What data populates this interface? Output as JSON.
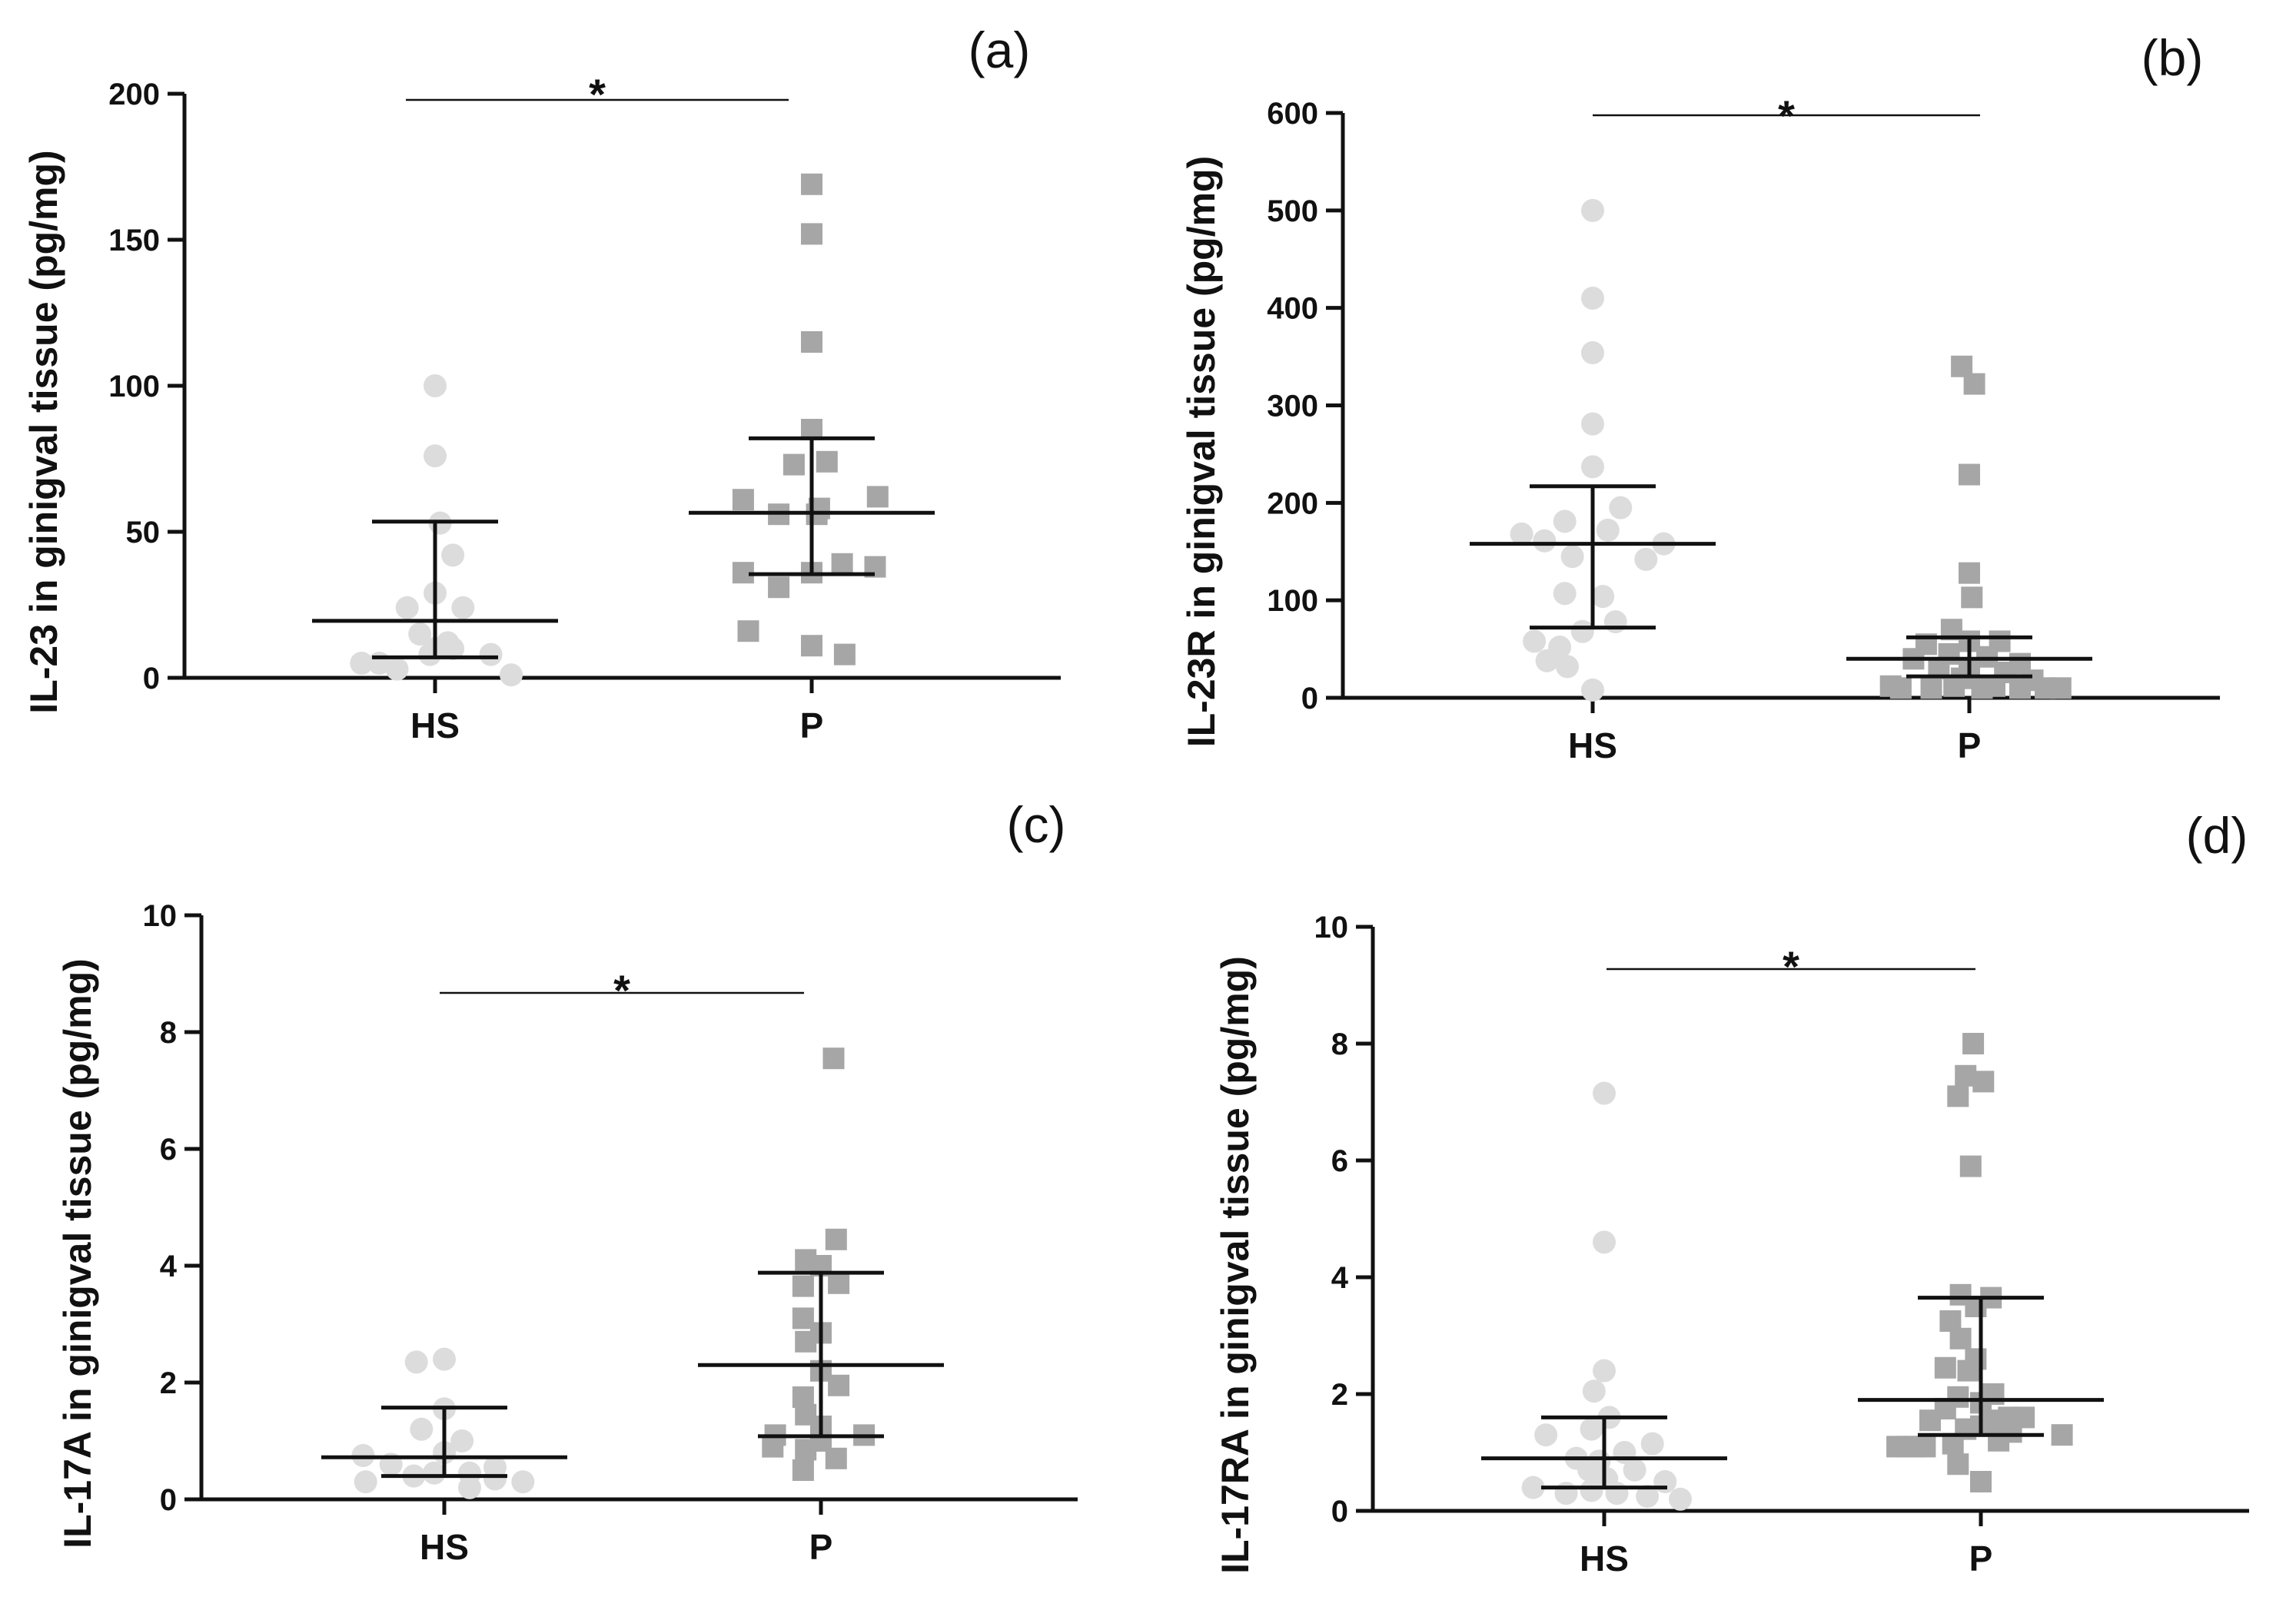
{
  "colors": {
    "hs_marker": "#dcdcdc",
    "p_marker": "#a6a6a6",
    "axis": "#111111"
  },
  "chart_data": [
    {
      "type": "scatter",
      "panel_label": "(a)",
      "ylabel": "IL-23 in ginigval tissue (pg/mg)",
      "xlabel": "",
      "categories": [
        "HS",
        "P"
      ],
      "ylim": [
        0,
        200
      ],
      "yticks": [
        0,
        50,
        100,
        150,
        200
      ],
      "significance": "*",
      "series": [
        {
          "name": "HS",
          "marker": "circle",
          "points": [
            {
              "dx": 0.0,
              "y": 100
            },
            {
              "dx": 0.0,
              "y": 76
            },
            {
              "dx": 0.02,
              "y": 53
            },
            {
              "dx": 0.07,
              "y": 42
            },
            {
              "dx": -0.11,
              "y": 24
            },
            {
              "dx": 0.11,
              "y": 24
            },
            {
              "dx": 0.0,
              "y": 29
            },
            {
              "dx": -0.06,
              "y": 15
            },
            {
              "dx": 0.05,
              "y": 12
            },
            {
              "dx": 0.0,
              "y": 10
            },
            {
              "dx": -0.02,
              "y": 8
            },
            {
              "dx": 0.07,
              "y": 10
            },
            {
              "dx": 0.22,
              "y": 8
            },
            {
              "dx": -0.29,
              "y": 5
            },
            {
              "dx": -0.22,
              "y": 5
            },
            {
              "dx": -0.15,
              "y": 3
            },
            {
              "dx": 0.3,
              "y": 1
            }
          ],
          "mean": 19.5,
          "err_low": 7,
          "err_high": 53.5
        },
        {
          "name": "P",
          "marker": "square",
          "points": [
            {
              "dx": 0.0,
              "y": 169
            },
            {
              "dx": 0.0,
              "y": 152
            },
            {
              "dx": 0.0,
              "y": 115
            },
            {
              "dx": 0.0,
              "y": 85
            },
            {
              "dx": -0.07,
              "y": 73
            },
            {
              "dx": 0.06,
              "y": 74
            },
            {
              "dx": -0.27,
              "y": 61
            },
            {
              "dx": 0.26,
              "y": 62
            },
            {
              "dx": -0.13,
              "y": 56
            },
            {
              "dx": 0.02,
              "y": 56
            },
            {
              "dx": 0.03,
              "y": 58
            },
            {
              "dx": -0.27,
              "y": 36
            },
            {
              "dx": -0.13,
              "y": 31
            },
            {
              "dx": 0.0,
              "y": 36
            },
            {
              "dx": 0.12,
              "y": 39
            },
            {
              "dx": 0.25,
              "y": 38
            },
            {
              "dx": -0.25,
              "y": 16
            },
            {
              "dx": 0.0,
              "y": 11
            },
            {
              "dx": 0.13,
              "y": 8
            }
          ],
          "mean": 56.5,
          "err_low": 35.5,
          "err_high": 82
        }
      ]
    },
    {
      "type": "scatter",
      "panel_label": "(b)",
      "ylabel": "IL-23R in ginigval tissue (pg/mg)",
      "xlabel": "",
      "categories": [
        "HS",
        "P"
      ],
      "ylim": [
        0,
        600
      ],
      "yticks": [
        0,
        100,
        200,
        300,
        400,
        500,
        600
      ],
      "significance": "*",
      "series": [
        {
          "name": "HS",
          "marker": "circle",
          "points": [
            {
              "dx": 0.0,
              "y": 500
            },
            {
              "dx": 0.0,
              "y": 410
            },
            {
              "dx": 0.0,
              "y": 354
            },
            {
              "dx": 0.0,
              "y": 281
            },
            {
              "dx": 0.0,
              "y": 237
            },
            {
              "dx": 0.11,
              "y": 195
            },
            {
              "dx": -0.11,
              "y": 181
            },
            {
              "dx": 0.06,
              "y": 172
            },
            {
              "dx": -0.28,
              "y": 168
            },
            {
              "dx": -0.19,
              "y": 161
            },
            {
              "dx": 0.28,
              "y": 158
            },
            {
              "dx": -0.08,
              "y": 145
            },
            {
              "dx": 0.21,
              "y": 142
            },
            {
              "dx": -0.11,
              "y": 107
            },
            {
              "dx": 0.04,
              "y": 104
            },
            {
              "dx": 0.09,
              "y": 78
            },
            {
              "dx": -0.04,
              "y": 68
            },
            {
              "dx": -0.23,
              "y": 58
            },
            {
              "dx": -0.13,
              "y": 52
            },
            {
              "dx": -0.18,
              "y": 38
            },
            {
              "dx": -0.1,
              "y": 32
            },
            {
              "dx": 0.0,
              "y": 8
            }
          ],
          "mean": 158,
          "err_low": 72,
          "err_high": 217
        },
        {
          "name": "P",
          "marker": "square",
          "points": [
            {
              "dx": -0.03,
              "y": 340
            },
            {
              "dx": 0.02,
              "y": 322
            },
            {
              "dx": 0.0,
              "y": 229
            },
            {
              "dx": 0.0,
              "y": 128
            },
            {
              "dx": 0.01,
              "y": 103
            },
            {
              "dx": -0.07,
              "y": 70
            },
            {
              "dx": 0.0,
              "y": 58
            },
            {
              "dx": 0.12,
              "y": 58
            },
            {
              "dx": -0.17,
              "y": 55
            },
            {
              "dx": -0.08,
              "y": 45
            },
            {
              "dx": 0.07,
              "y": 42
            },
            {
              "dx": -0.22,
              "y": 40
            },
            {
              "dx": 0.2,
              "y": 35
            },
            {
              "dx": -0.12,
              "y": 30
            },
            {
              "dx": 0.0,
              "y": 28
            },
            {
              "dx": 0.14,
              "y": 26
            },
            {
              "dx": -0.03,
              "y": 20
            },
            {
              "dx": 0.25,
              "y": 18
            },
            {
              "dx": -0.31,
              "y": 12
            },
            {
              "dx": -0.27,
              "y": 10
            },
            {
              "dx": -0.15,
              "y": 10
            },
            {
              "dx": 0.05,
              "y": 10
            },
            {
              "dx": 0.2,
              "y": 10
            },
            {
              "dx": 0.3,
              "y": 10
            },
            {
              "dx": 0.36,
              "y": 10
            },
            {
              "dx": -0.06,
              "y": 12
            },
            {
              "dx": 0.1,
              "y": 12
            }
          ],
          "mean": 40,
          "err_low": 22,
          "err_high": 62
        }
      ]
    },
    {
      "type": "scatter",
      "panel_label": "(c)",
      "ylabel": "IL-17A in ginigval tissue (pg/mg)",
      "xlabel": "",
      "categories": [
        "HS",
        "P"
      ],
      "ylim": [
        0,
        10
      ],
      "yticks": [
        0,
        2,
        4,
        6,
        8,
        10
      ],
      "significance": "*",
      "series": [
        {
          "name": "HS",
          "marker": "circle",
          "points": [
            {
              "dx": -0.11,
              "y": 2.35
            },
            {
              "dx": 0.0,
              "y": 2.4
            },
            {
              "dx": 0.0,
              "y": 1.55
            },
            {
              "dx": -0.09,
              "y": 1.2
            },
            {
              "dx": 0.07,
              "y": 1.0
            },
            {
              "dx": -0.32,
              "y": 0.75
            },
            {
              "dx": 0.0,
              "y": 0.8
            },
            {
              "dx": -0.21,
              "y": 0.6
            },
            {
              "dx": 0.2,
              "y": 0.55
            },
            {
              "dx": -0.12,
              "y": 0.4
            },
            {
              "dx": -0.04,
              "y": 0.45
            },
            {
              "dx": 0.1,
              "y": 0.45
            },
            {
              "dx": 0.2,
              "y": 0.35
            },
            {
              "dx": -0.31,
              "y": 0.3
            },
            {
              "dx": 0.31,
              "y": 0.3
            },
            {
              "dx": 0.1,
              "y": 0.2
            }
          ],
          "mean": 0.72,
          "err_low": 0.4,
          "err_high": 1.57
        },
        {
          "name": "P",
          "marker": "square",
          "points": [
            {
              "dx": 0.05,
              "y": 7.55
            },
            {
              "dx": 0.06,
              "y": 4.45
            },
            {
              "dx": -0.06,
              "y": 4.1
            },
            {
              "dx": 0.0,
              "y": 4.0
            },
            {
              "dx": -0.07,
              "y": 3.65
            },
            {
              "dx": 0.07,
              "y": 3.7
            },
            {
              "dx": -0.07,
              "y": 3.1
            },
            {
              "dx": 0.0,
              "y": 2.85
            },
            {
              "dx": -0.06,
              "y": 2.7
            },
            {
              "dx": 0.0,
              "y": 2.2
            },
            {
              "dx": 0.07,
              "y": 1.95
            },
            {
              "dx": -0.07,
              "y": 1.75
            },
            {
              "dx": -0.06,
              "y": 1.45
            },
            {
              "dx": 0.0,
              "y": 1.25
            },
            {
              "dx": -0.18,
              "y": 1.1
            },
            {
              "dx": 0.17,
              "y": 1.1
            },
            {
              "dx": 0.0,
              "y": 1.0
            },
            {
              "dx": -0.19,
              "y": 0.9
            },
            {
              "dx": -0.06,
              "y": 0.85
            },
            {
              "dx": 0.06,
              "y": 0.7
            },
            {
              "dx": -0.07,
              "y": 0.5
            }
          ],
          "mean": 2.3,
          "err_low": 1.08,
          "err_high": 3.88
        }
      ]
    },
    {
      "type": "scatter",
      "panel_label": "(d)",
      "ylabel": "IL-17RA in ginigval tissue (pg/mg)",
      "xlabel": "",
      "categories": [
        "HS",
        "P"
      ],
      "ylim": [
        0,
        10
      ],
      "yticks": [
        0,
        2,
        4,
        6,
        8,
        10
      ],
      "significance": "*",
      "series": [
        {
          "name": "HS",
          "marker": "circle",
          "points": [
            {
              "dx": 0.0,
              "y": 7.15
            },
            {
              "dx": 0.0,
              "y": 4.6
            },
            {
              "dx": 0.0,
              "y": 2.4
            },
            {
              "dx": -0.04,
              "y": 2.05
            },
            {
              "dx": 0.02,
              "y": 1.6
            },
            {
              "dx": -0.05,
              "y": 1.4
            },
            {
              "dx": -0.23,
              "y": 1.3
            },
            {
              "dx": 0.19,
              "y": 1.15
            },
            {
              "dx": 0.08,
              "y": 1.0
            },
            {
              "dx": -0.11,
              "y": 0.9
            },
            {
              "dx": -0.02,
              "y": 0.85
            },
            {
              "dx": 0.12,
              "y": 0.7
            },
            {
              "dx": -0.06,
              "y": 0.7
            },
            {
              "dx": 0.01,
              "y": 0.55
            },
            {
              "dx": 0.24,
              "y": 0.5
            },
            {
              "dx": -0.28,
              "y": 0.4
            },
            {
              "dx": -0.15,
              "y": 0.3
            },
            {
              "dx": -0.05,
              "y": 0.35
            },
            {
              "dx": 0.05,
              "y": 0.3
            },
            {
              "dx": 0.17,
              "y": 0.25
            },
            {
              "dx": 0.3,
              "y": 0.2
            }
          ],
          "mean": 0.9,
          "err_low": 0.4,
          "err_high": 1.6
        },
        {
          "name": "P",
          "marker": "square",
          "points": [
            {
              "dx": -0.03,
              "y": 8.0
            },
            {
              "dx": -0.06,
              "y": 7.45
            },
            {
              "dx": 0.01,
              "y": 7.35
            },
            {
              "dx": -0.09,
              "y": 7.1
            },
            {
              "dx": -0.04,
              "y": 5.9
            },
            {
              "dx": -0.08,
              "y": 3.7
            },
            {
              "dx": 0.04,
              "y": 3.65
            },
            {
              "dx": -0.02,
              "y": 3.5
            },
            {
              "dx": -0.12,
              "y": 3.25
            },
            {
              "dx": -0.08,
              "y": 2.95
            },
            {
              "dx": -0.02,
              "y": 2.6
            },
            {
              "dx": -0.14,
              "y": 2.45
            },
            {
              "dx": -0.05,
              "y": 2.4
            },
            {
              "dx": 0.05,
              "y": 2.0
            },
            {
              "dx": -0.09,
              "y": 1.95
            },
            {
              "dx": 0.0,
              "y": 1.85
            },
            {
              "dx": -0.14,
              "y": 1.75
            },
            {
              "dx": -0.2,
              "y": 1.55
            },
            {
              "dx": 0.11,
              "y": 1.6
            },
            {
              "dx": 0.05,
              "y": 1.55
            },
            {
              "dx": 0.17,
              "y": 1.6
            },
            {
              "dx": -0.06,
              "y": 1.4
            },
            {
              "dx": 0.0,
              "y": 1.45
            },
            {
              "dx": 0.12,
              "y": 1.35
            },
            {
              "dx": -0.33,
              "y": 1.1
            },
            {
              "dx": -0.29,
              "y": 1.1
            },
            {
              "dx": -0.26,
              "y": 1.1
            },
            {
              "dx": -0.22,
              "y": 1.1
            },
            {
              "dx": -0.11,
              "y": 1.15
            },
            {
              "dx": 0.07,
              "y": 1.2
            },
            {
              "dx": 0.32,
              "y": 1.3
            },
            {
              "dx": -0.09,
              "y": 0.8
            },
            {
              "dx": 0.0,
              "y": 0.5
            }
          ],
          "mean": 1.9,
          "err_low": 1.3,
          "err_high": 3.65
        }
      ]
    }
  ]
}
